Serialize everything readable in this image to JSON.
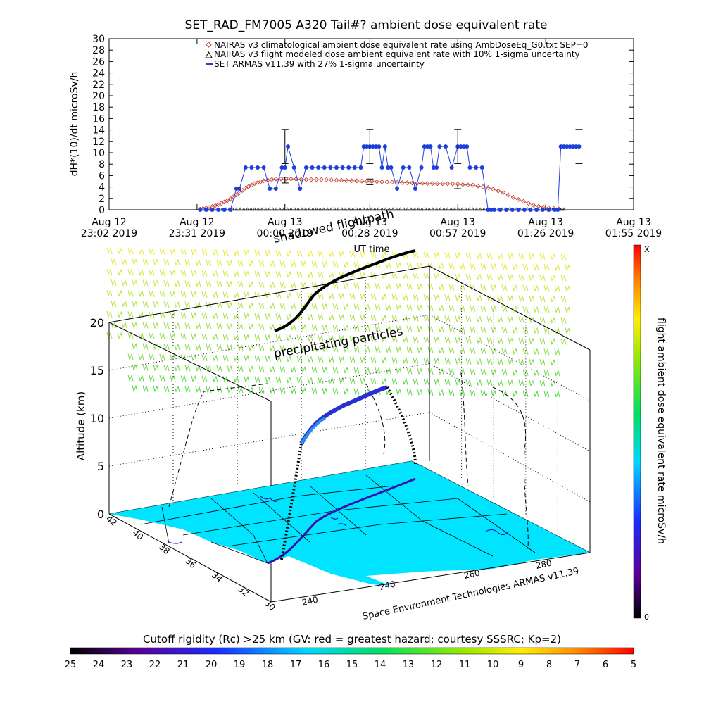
{
  "chart_data": [
    {
      "type": "scatter",
      "title": "SET_RAD_FM7005  A320 Tail#? ambient dose equivalent rate",
      "ylabel": "dH*(10)/dt microSv/h",
      "xlabel": "UT time",
      "ylim": [
        0,
        30
      ],
      "yticks": [
        0,
        2,
        4,
        6,
        8,
        10,
        12,
        14,
        16,
        18,
        20,
        22,
        24,
        26,
        28,
        30
      ],
      "xticks": [
        {
          "l1": "Aug 12",
          "l2": "23:02 2019"
        },
        {
          "l1": "Aug 12",
          "l2": "23:31 2019"
        },
        {
          "l1": "Aug 13",
          "l2": "00:00 2019"
        },
        {
          "l1": "Aug 13",
          "l2": "00:28 2019"
        },
        {
          "l1": "Aug 13",
          "l2": "00:57 2019"
        },
        {
          "l1": "Aug 13",
          "l2": "01:26 2019"
        },
        {
          "l1": "Aug 13",
          "l2": "01:55 2019"
        }
      ],
      "x_minutes_from_first_tick": [
        0,
        29,
        58,
        86,
        115,
        144,
        173
      ],
      "legend_position": "top-right",
      "series": [
        {
          "name": "NAIRAS v3 climatological ambient dose equivalent rate using AmbDoseEq_G0.txt SEP=0",
          "marker": "diamond",
          "color": "#c0392b",
          "x": [
            30,
            33,
            36,
            39,
            42,
            45,
            48,
            51,
            55,
            60,
            65,
            70,
            75,
            80,
            85,
            90,
            95,
            100,
            105,
            110,
            115,
            120,
            125,
            130,
            135,
            140,
            145,
            150
          ],
          "y": [
            0.1,
            0.4,
            0.9,
            1.6,
            2.6,
            3.8,
            4.6,
            5.1,
            5.4,
            5.4,
            5.3,
            5.3,
            5.2,
            5.1,
            5.0,
            4.9,
            4.8,
            4.7,
            4.6,
            4.6,
            4.5,
            4.3,
            3.9,
            3.0,
            1.8,
            0.8,
            0.3,
            0.1
          ]
        },
        {
          "name": "NAIRAS v3 flight modeled dose ambient equivalent rate with 10% 1-sigma uncertainty",
          "marker": "triangle",
          "color": "#000000",
          "x": [
            30,
            35,
            40,
            45,
            50,
            55,
            60,
            65,
            70,
            75,
            80,
            85,
            90,
            95,
            100,
            105,
            110,
            115,
            120,
            125,
            130,
            135,
            140,
            145,
            150
          ],
          "y": [
            0,
            0,
            0,
            0,
            0,
            0,
            0,
            0,
            0,
            0,
            0,
            0,
            0,
            0,
            0,
            0,
            0,
            0,
            0,
            0,
            0,
            0,
            0,
            0,
            0
          ],
          "error_bars": [
            {
              "x": 58,
              "y": 5.2,
              "err": 0.5
            },
            {
              "x": 86,
              "y": 4.9,
              "err": 0.5
            },
            {
              "x": 115,
              "y": 4.1,
              "err": 0.4
            }
          ]
        },
        {
          "name": "SET ARMAS v11.39 with 27% 1-sigma uncertainty",
          "marker": "dot",
          "color": "#1f3fdc",
          "x": [
            30,
            32,
            34,
            36,
            38,
            40,
            42,
            43,
            45,
            47,
            49,
            51,
            53,
            55,
            57,
            58,
            59,
            61,
            63,
            65,
            67,
            69,
            71,
            73,
            75,
            77,
            79,
            81,
            83,
            84,
            85,
            86,
            87,
            88,
            89,
            90,
            91,
            92,
            93,
            95,
            97,
            99,
            101,
            103,
            104,
            105,
            106,
            107,
            108,
            109,
            111,
            113,
            115,
            116,
            117,
            118,
            119,
            121,
            123,
            125,
            126,
            127,
            129,
            131,
            133,
            135,
            137,
            139,
            141,
            143,
            145,
            147,
            148,
            149,
            150,
            151,
            152,
            153,
            154,
            155
          ],
          "y": [
            0,
            0,
            0,
            0,
            0,
            0,
            3.7,
            3.7,
            7.4,
            7.4,
            7.4,
            7.4,
            3.7,
            3.7,
            7.4,
            7.4,
            11.1,
            7.4,
            3.7,
            7.4,
            7.4,
            7.4,
            7.4,
            7.4,
            7.4,
            7.4,
            7.4,
            7.4,
            7.4,
            11.1,
            11.1,
            11.1,
            11.1,
            11.1,
            11.1,
            7.4,
            11.1,
            7.4,
            7.4,
            3.7,
            7.4,
            7.4,
            3.7,
            7.4,
            11.1,
            11.1,
            11.1,
            7.4,
            7.4,
            11.1,
            11.1,
            7.4,
            11.1,
            11.1,
            11.1,
            11.1,
            7.4,
            7.4,
            7.4,
            0,
            0,
            0,
            0,
            0,
            0,
            0,
            0,
            0,
            0,
            0,
            0,
            0,
            0,
            11.1,
            11.1,
            11.1,
            11.1,
            11.1,
            11.1,
            11.1
          ],
          "error_bars": [
            {
              "x": 58,
              "y": 11.1,
              "err": 3.0
            },
            {
              "x": 86,
              "y": 11.1,
              "err": 3.0
            },
            {
              "x": 115,
              "y": 11.1,
              "err": 3.0
            },
            {
              "x": 155,
              "y": 11.1,
              "err": 3.0
            }
          ]
        }
      ]
    },
    {
      "type": "scatter",
      "title": "",
      "zlabel": "Altitude (km)",
      "zticks": [
        0,
        5,
        10,
        15,
        20
      ],
      "latitude_ticks": [
        42,
        40,
        38,
        36,
        34,
        32,
        30
      ],
      "longitude_ticks": [
        240,
        240,
        260,
        280
      ],
      "annotations": [
        {
          "text": "shadowed flightpath"
        },
        {
          "text": "precipitating particles"
        },
        {
          "text": "Space Environment Technologies ARMAS v11.39"
        }
      ],
      "right_colorbar": {
        "label": "flight ambient dose equivalent rate microSv/h",
        "top_label": "X",
        "bottom_label": "0"
      },
      "bottom_colorbar": {
        "label": "Cutoff rigidity (Rc) >25 km (GV: red = greatest hazard; courtesy SSSRC; Kp=2)",
        "ticks": [
          25,
          24,
          23,
          22,
          21,
          20,
          19,
          18,
          17,
          16,
          15,
          14,
          13,
          12,
          11,
          10,
          9,
          8,
          7,
          6,
          5
        ]
      }
    }
  ]
}
